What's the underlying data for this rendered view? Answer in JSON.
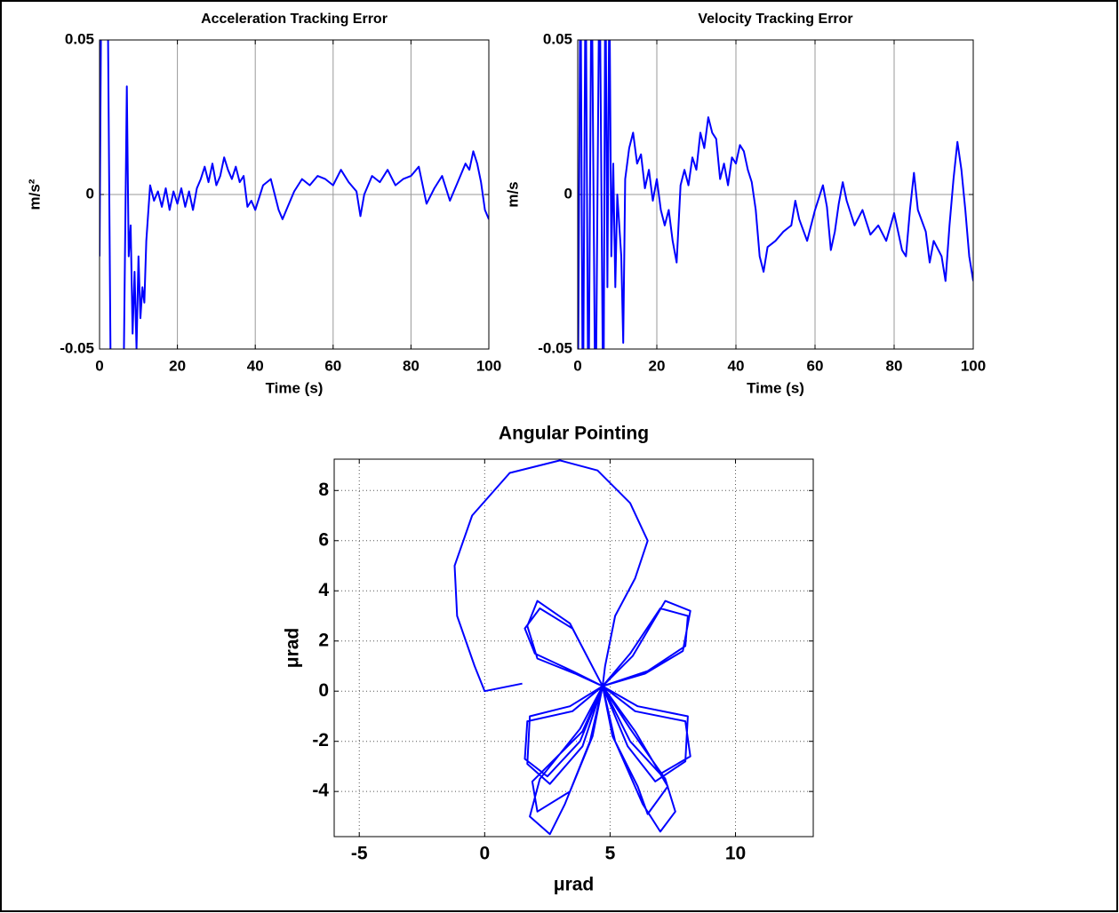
{
  "chart_data": [
    {
      "type": "line",
      "title": "Acceleration Tracking Error",
      "x_label": "Time (s)",
      "y_label": "m/s²",
      "color": "#0000ff",
      "grid": true,
      "xlim": [
        0,
        100
      ],
      "ylim": [
        -0.05,
        0.05
      ],
      "xticks": [
        0,
        20,
        40,
        60,
        80,
        100
      ],
      "yticks": [
        -0.05,
        0,
        0.05
      ],
      "x": [
        0,
        0.5,
        2,
        3,
        6,
        7,
        7.5,
        8,
        8.5,
        9,
        9.5,
        10,
        10.5,
        11,
        11.5,
        12,
        13,
        14,
        15,
        16,
        17,
        18,
        19,
        20,
        21,
        22,
        23,
        24,
        25,
        26,
        27,
        28,
        29,
        30,
        31,
        32,
        33,
        34,
        35,
        36,
        37,
        38,
        39,
        40,
        42,
        44,
        46,
        47,
        48,
        50,
        52,
        54,
        56,
        58,
        60,
        62,
        64,
        66,
        67,
        68,
        70,
        72,
        74,
        76,
        78,
        80,
        82,
        84,
        86,
        88,
        90,
        92,
        94,
        95,
        96,
        97,
        98,
        99,
        100
      ],
      "values": [
        -0.02,
        0.08,
        0.08,
        -0.08,
        -0.08,
        0.035,
        -0.02,
        -0.01,
        -0.045,
        -0.025,
        -0.05,
        -0.02,
        -0.04,
        -0.03,
        -0.035,
        -0.015,
        0.003,
        -0.002,
        0.001,
        -0.004,
        0.002,
        -0.005,
        0.001,
        -0.003,
        0.002,
        -0.004,
        0.001,
        -0.005,
        0.002,
        0.005,
        0.009,
        0.004,
        0.01,
        0.003,
        0.006,
        0.012,
        0.008,
        0.005,
        0.009,
        0.004,
        0.006,
        -0.004,
        -0.002,
        -0.005,
        0.003,
        0.005,
        -0.005,
        -0.008,
        -0.005,
        0.001,
        0.005,
        0.003,
        0.006,
        0.005,
        0.003,
        0.008,
        0.004,
        0.001,
        -0.007,
        0,
        0.006,
        0.004,
        0.008,
        0.003,
        0.005,
        0.006,
        0.009,
        -0.003,
        0.002,
        0.006,
        -0.002,
        0.004,
        0.01,
        0.008,
        0.014,
        0.01,
        0.004,
        -0.005,
        -0.008
      ]
    },
    {
      "type": "line",
      "title": "Velocity Tracking Error",
      "x_label": "Time (s)",
      "y_label": "m/s",
      "color": "#0000ff",
      "grid": true,
      "xlim": [
        0,
        100
      ],
      "ylim": [
        -0.05,
        0.05
      ],
      "xticks": [
        0,
        20,
        40,
        60,
        80,
        100
      ],
      "yticks": [
        -0.05,
        0,
        0.05
      ],
      "x": [
        0,
        0.7,
        1.3,
        2,
        2.7,
        3.5,
        4.5,
        5.5,
        6.5,
        7,
        7.5,
        8,
        8.5,
        9,
        9.5,
        10,
        11,
        11.5,
        12,
        13,
        14,
        15,
        16,
        17,
        18,
        19,
        20,
        21,
        22,
        23,
        24,
        25,
        26,
        27,
        28,
        29,
        30,
        31,
        32,
        33,
        34,
        35,
        36,
        37,
        38,
        39,
        40,
        41,
        42,
        43,
        44,
        45,
        46,
        47,
        48,
        50,
        52,
        54,
        55,
        56,
        58,
        60,
        62,
        63,
        64,
        65,
        66,
        67,
        68,
        70,
        72,
        74,
        76,
        78,
        80,
        82,
        83,
        84,
        85,
        86,
        88,
        89,
        90,
        92,
        93,
        94,
        95,
        96,
        97,
        98,
        99,
        100
      ],
      "values": [
        -0.08,
        0.08,
        -0.08,
        0.08,
        -0.08,
        0.08,
        -0.08,
        0.08,
        -0.08,
        0.08,
        -0.03,
        0.07,
        -0.02,
        0.01,
        -0.03,
        0,
        -0.02,
        -0.048,
        0.005,
        0.015,
        0.02,
        0.01,
        0.013,
        0.002,
        0.008,
        -0.002,
        0.005,
        -0.005,
        -0.01,
        -0.005,
        -0.015,
        -0.022,
        0.003,
        0.008,
        0.003,
        0.012,
        0.008,
        0.02,
        0.015,
        0.025,
        0.02,
        0.018,
        0.005,
        0.01,
        0.003,
        0.012,
        0.01,
        0.016,
        0.014,
        0.008,
        0.004,
        -0.005,
        -0.02,
        -0.025,
        -0.017,
        -0.015,
        -0.012,
        -0.01,
        -0.002,
        -0.008,
        -0.015,
        -0.005,
        0.003,
        -0.004,
        -0.018,
        -0.012,
        -0.003,
        0.004,
        -0.002,
        -0.01,
        -0.005,
        -0.013,
        -0.01,
        -0.015,
        -0.006,
        -0.018,
        -0.02,
        -0.005,
        0.007,
        -0.005,
        -0.012,
        -0.022,
        -0.015,
        -0.02,
        -0.028,
        -0.01,
        0.005,
        0.017,
        0.008,
        -0.005,
        -0.02,
        -0.028
      ]
    },
    {
      "type": "line",
      "title": "Angular Pointing",
      "x_label": "μrad",
      "y_label": "μrad",
      "color": "#0000ff",
      "grid": true,
      "xlim": [
        -6,
        13.1
      ],
      "ylim": [
        -5.8,
        9.25
      ],
      "xticks": [
        -5,
        0,
        5,
        10
      ],
      "yticks": [
        -4,
        -2,
        0,
        2,
        4,
        6,
        8
      ],
      "x": [
        1.5,
        0,
        -0.4,
        -1.1,
        -1.2,
        -0.5,
        1,
        3,
        4.5,
        5.8,
        6.5,
        6,
        5.2,
        4.8,
        4.7,
        3.5,
        2.2,
        1.6,
        2,
        3.5,
        4.7,
        5.8,
        7,
        8.1,
        8,
        6.5,
        4.7,
        6,
        8,
        8.2,
        7,
        5.8,
        4.7,
        3.5,
        1.7,
        1.6,
        2.5,
        3.8,
        4.7,
        4.2,
        3.2,
        2.6,
        1.8,
        2.2,
        3.8,
        4.7,
        5.2,
        6.3,
        7,
        7.6,
        7.2,
        5.8,
        4.7,
        3.4,
        2.1,
        1.7,
        2.1,
        3.6,
        4.7,
        5.9,
        7.2,
        8.2,
        7.9,
        6.4,
        4.7,
        6.1,
        8.1,
        8,
        6.8,
        5.7,
        4.7,
        3.4,
        1.8,
        1.7,
        2.6,
        3.9,
        4.7,
        4.3,
        3.4,
        2.1,
        1.9,
        3.9,
        4.7,
        5.1,
        6.1,
        6.5,
        7.3,
        6,
        4.7
      ],
      "values": [
        0.3,
        0,
        1,
        3,
        5,
        7,
        8.7,
        9.2,
        8.8,
        7.5,
        6,
        4.5,
        3,
        1,
        0.2,
        2.5,
        3.3,
        2.5,
        1.5,
        0.8,
        0.2,
        1.5,
        3.3,
        3,
        1.8,
        0.8,
        0.2,
        -0.8,
        -1.2,
        -2.6,
        -3.3,
        -2,
        0.2,
        -0.8,
        -1.2,
        -2.7,
        -3.4,
        -2,
        0.2,
        -2,
        -4.5,
        -5.7,
        -5,
        -3.5,
        -1.5,
        0.2,
        -2,
        -4.5,
        -5.6,
        -4.8,
        -3.5,
        -1.5,
        0.2,
        2.7,
        3.6,
        2.6,
        1.3,
        0.7,
        0.2,
        1.4,
        3.6,
        3.2,
        1.6,
        0.7,
        0.2,
        -0.6,
        -1,
        -2.8,
        -3.6,
        -2.2,
        0.2,
        -0.6,
        -1,
        -2.9,
        -3.7,
        -2.2,
        0.2,
        -1.8,
        -4,
        -4.8,
        -3.6,
        -1.6,
        0.2,
        -1.8,
        -3.8,
        -4.9,
        -3.8,
        -1.6,
        0.2
      ]
    }
  ]
}
